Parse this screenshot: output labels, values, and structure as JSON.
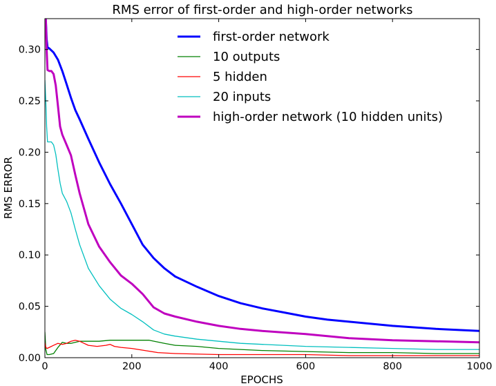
{
  "chart_data": {
    "type": "line",
    "title": "RMS error of first-order and high-order networks",
    "xlabel": "EPOCHS",
    "ylabel": "RMS ERROR",
    "xlim": [
      0,
      1000
    ],
    "ylim": [
      0,
      0.33
    ],
    "xticks": [
      "0",
      "200",
      "400",
      "600",
      "800",
      "1000"
    ],
    "yticks": [
      "0.00",
      "0.05",
      "0.10",
      "0.15",
      "0.20",
      "0.25",
      "0.30"
    ],
    "grid": false,
    "legend_position": "top-right",
    "series": [
      {
        "name": "first-order network",
        "color": "#0000ff",
        "width": "thick",
        "x": [
          0,
          2,
          4,
          6,
          10,
          20,
          30,
          40,
          50,
          60,
          70,
          80,
          100,
          125,
          150,
          175,
          200,
          225,
          250,
          275,
          300,
          350,
          400,
          450,
          500,
          550,
          600,
          650,
          700,
          800,
          900,
          1000
        ],
        "y": [
          0.33,
          0.33,
          0.31,
          0.302,
          0.301,
          0.297,
          0.29,
          0.279,
          0.266,
          0.253,
          0.241,
          0.232,
          0.213,
          0.19,
          0.169,
          0.15,
          0.13,
          0.11,
          0.097,
          0.087,
          0.079,
          0.069,
          0.06,
          0.053,
          0.048,
          0.044,
          0.04,
          0.037,
          0.035,
          0.031,
          0.028,
          0.026
        ]
      },
      {
        "name": "10 outputs",
        "color": "#008000",
        "width": "thin",
        "x": [
          0,
          2,
          5,
          10,
          20,
          30,
          40,
          50,
          60,
          70,
          80,
          100,
          125,
          150,
          175,
          200,
          225,
          240,
          275,
          300,
          350,
          400,
          500,
          600,
          700,
          800,
          900,
          1000
        ],
        "y": [
          0.025,
          0.008,
          0.003,
          0.003,
          0.004,
          0.01,
          0.015,
          0.014,
          0.014,
          0.015,
          0.016,
          0.016,
          0.016,
          0.017,
          0.017,
          0.017,
          0.017,
          0.017,
          0.014,
          0.012,
          0.011,
          0.009,
          0.007,
          0.006,
          0.005,
          0.005,
          0.004,
          0.004
        ]
      },
      {
        "name": "5 hidden",
        "color": "#ff0000",
        "width": "thin",
        "x": [
          0,
          2,
          5,
          10,
          20,
          30,
          40,
          50,
          60,
          70,
          80,
          90,
          100,
          120,
          140,
          150,
          160,
          175,
          200,
          230,
          260,
          300,
          400,
          500,
          600,
          700,
          800,
          1000
        ],
        "y": [
          0.015,
          0.01,
          0.009,
          0.01,
          0.012,
          0.014,
          0.013,
          0.014,
          0.016,
          0.017,
          0.016,
          0.014,
          0.012,
          0.011,
          0.012,
          0.013,
          0.011,
          0.01,
          0.009,
          0.007,
          0.005,
          0.004,
          0.003,
          0.003,
          0.003,
          0.002,
          0.002,
          0.002
        ]
      },
      {
        "name": "20 inputs",
        "color": "#00bfbf",
        "width": "thin",
        "x": [
          0,
          2,
          4,
          6,
          10,
          15,
          20,
          25,
          30,
          35,
          40,
          50,
          60,
          70,
          80,
          100,
          125,
          150,
          175,
          200,
          225,
          250,
          275,
          300,
          350,
          400,
          450,
          500,
          600,
          700,
          800,
          900,
          1000
        ],
        "y": [
          0.27,
          0.25,
          0.225,
          0.21,
          0.21,
          0.21,
          0.207,
          0.198,
          0.183,
          0.17,
          0.16,
          0.152,
          0.141,
          0.125,
          0.11,
          0.087,
          0.07,
          0.057,
          0.048,
          0.042,
          0.035,
          0.027,
          0.023,
          0.021,
          0.018,
          0.016,
          0.014,
          0.013,
          0.011,
          0.01,
          0.009,
          0.008,
          0.008
        ]
      },
      {
        "name": "high-order network (10 hidden units)",
        "color": "#bf00bf",
        "width": "thick",
        "x": [
          0,
          2,
          4,
          6,
          10,
          15,
          20,
          25,
          30,
          35,
          40,
          50,
          60,
          70,
          80,
          100,
          125,
          150,
          175,
          200,
          225,
          250,
          275,
          300,
          350,
          400,
          450,
          500,
          600,
          700,
          800,
          900,
          1000
        ],
        "y": [
          0.33,
          0.33,
          0.3,
          0.28,
          0.279,
          0.279,
          0.276,
          0.265,
          0.245,
          0.225,
          0.217,
          0.207,
          0.197,
          0.178,
          0.16,
          0.13,
          0.108,
          0.093,
          0.08,
          0.072,
          0.062,
          0.049,
          0.043,
          0.04,
          0.035,
          0.031,
          0.028,
          0.026,
          0.023,
          0.019,
          0.017,
          0.016,
          0.015
        ]
      }
    ]
  }
}
